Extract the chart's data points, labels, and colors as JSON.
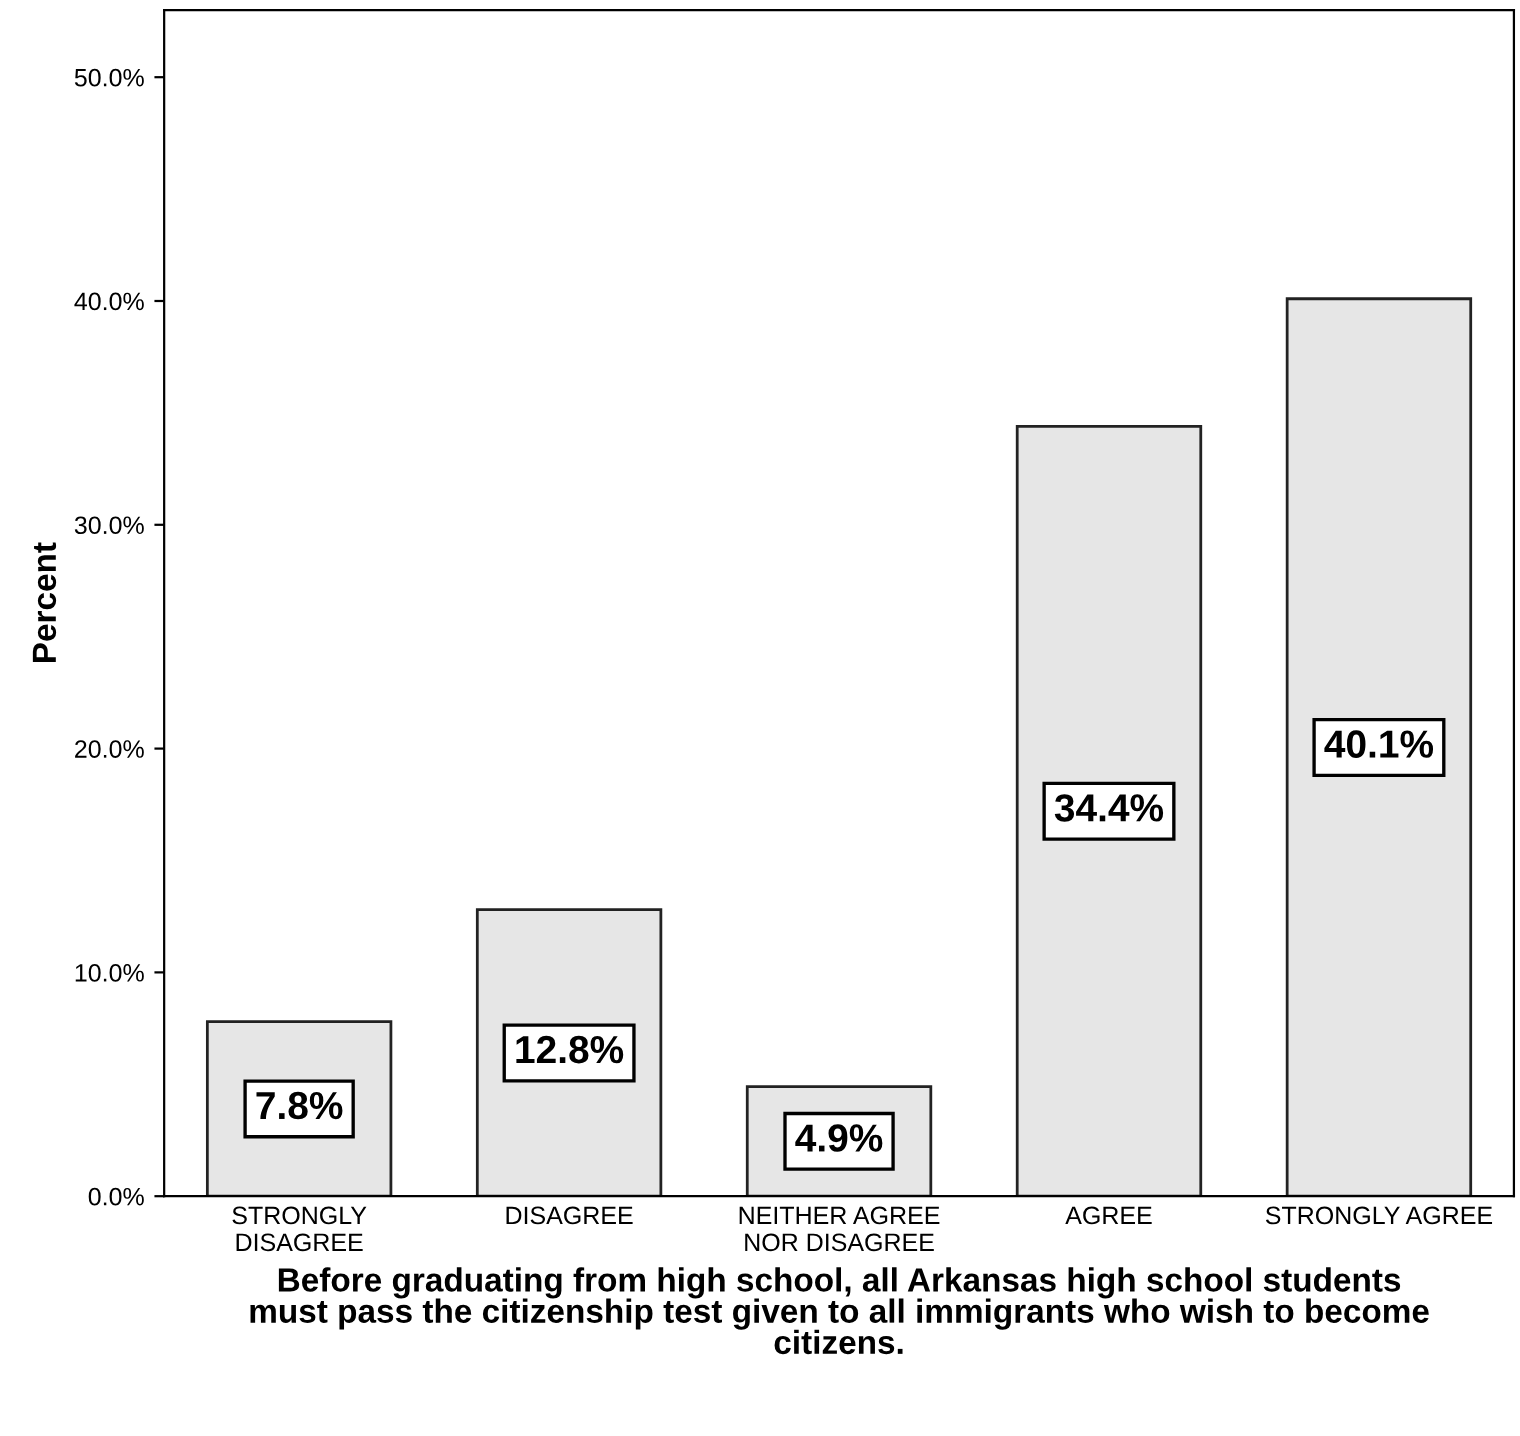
{
  "chart_data": {
    "type": "bar",
    "xlabel": "Before graduating from high school, all Arkansas high school students\nmust pass the citizenship test given to all immigrants who wish to become\ncitizens.",
    "ylabel": "Percent",
    "categories": [
      "STRONGLY\nDISAGREE",
      "DISAGREE",
      "NEITHER AGREE\nNOR DISAGREE",
      "AGREE",
      "STRONGLY AGREE"
    ],
    "values": [
      7.8,
      12.8,
      4.9,
      34.4,
      40.1
    ],
    "value_labels": [
      "7.8%",
      "12.8%",
      "4.9%",
      "34.4%",
      "40.1%"
    ],
    "color": "#e6e6e6",
    "ylim": [
      0,
      53
    ],
    "yticks": [
      {
        "value": 0,
        "label": "0.0%"
      },
      {
        "value": 10,
        "label": "10.0%"
      },
      {
        "value": 20,
        "label": "20.0%"
      },
      {
        "value": 30,
        "label": "30.0%"
      },
      {
        "value": 40,
        "label": "40.0%"
      },
      {
        "value": 50,
        "label": "50.0%"
      }
    ],
    "grid": false,
    "legend": false
  }
}
